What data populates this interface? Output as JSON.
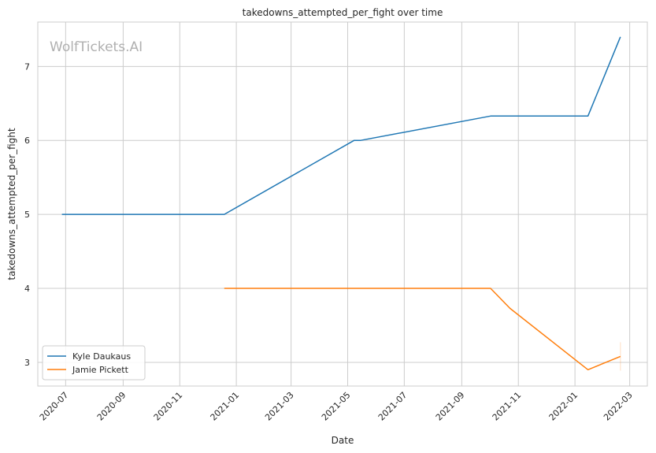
{
  "chart_data": {
    "type": "line",
    "title": "takedowns_attempted_per_fight over time",
    "xlabel": "Date",
    "ylabel": "takedowns_attempted_per_fight",
    "watermark": "WolfTickets.AI",
    "x_ticks": [
      "2020-07",
      "2020-09",
      "2020-11",
      "2021-01",
      "2021-03",
      "2021-05",
      "2021-07",
      "2021-09",
      "2021-11",
      "2022-01",
      "2022-03"
    ],
    "y_ticks": [
      3,
      4,
      5,
      6,
      7
    ],
    "xlim": [
      "2020-06-01",
      "2022-03-20"
    ],
    "ylim": [
      2.68,
      7.6
    ],
    "grid": true,
    "legend_position": "lower-left",
    "series": [
      {
        "name": "Kyle Daukaus",
        "color": "#1f77b4",
        "points": [
          {
            "x": "2020-06-27",
            "y": 5.0
          },
          {
            "x": "2020-12-19",
            "y": 5.0
          },
          {
            "x": "2021-05-08",
            "y": 6.0
          },
          {
            "x": "2021-05-15",
            "y": 6.0
          },
          {
            "x": "2021-10-02",
            "y": 6.33
          },
          {
            "x": "2022-01-15",
            "y": 6.33
          },
          {
            "x": "2022-02-19",
            "y": 7.4
          }
        ]
      },
      {
        "name": "Jamie Pickett",
        "color": "#ff7f0e",
        "points": [
          {
            "x": "2020-12-19",
            "y": 4.0
          },
          {
            "x": "2021-10-02",
            "y": 4.0
          },
          {
            "x": "2021-10-23",
            "y": 3.73
          },
          {
            "x": "2022-01-15",
            "y": 2.9
          },
          {
            "x": "2022-02-19",
            "y": 3.08
          }
        ]
      }
    ]
  }
}
